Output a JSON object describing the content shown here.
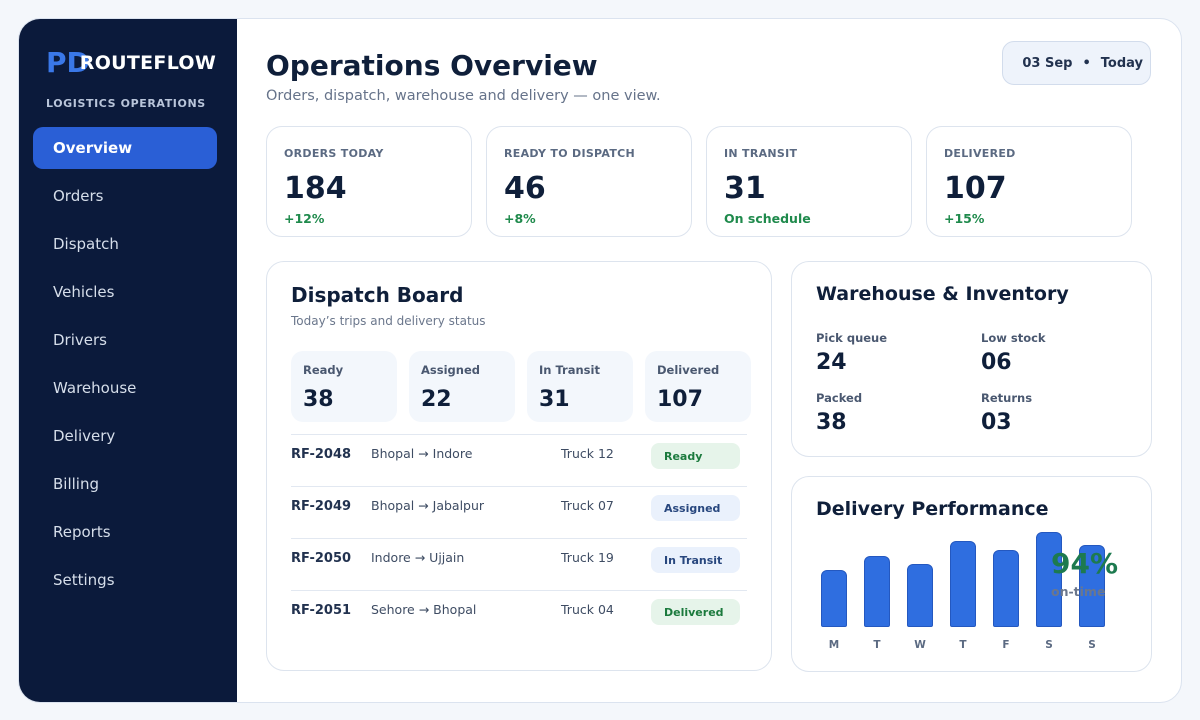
{
  "sidebar": {
    "brand_mark": "PD",
    "brand_name": "ROUTEFLOW",
    "brand_sub": "LOGISTICS OPERATIONS",
    "items": [
      {
        "label": "Overview"
      },
      {
        "label": "Orders"
      },
      {
        "label": "Dispatch"
      },
      {
        "label": "Vehicles"
      },
      {
        "label": "Drivers"
      },
      {
        "label": "Warehouse"
      },
      {
        "label": "Delivery"
      },
      {
        "label": "Billing"
      },
      {
        "label": "Reports"
      },
      {
        "label": "Settings"
      }
    ],
    "active_item": "Overview"
  },
  "header": {
    "title": "Operations Overview",
    "subtitle": "Orders, dispatch, warehouse and delivery — one view.",
    "date": "03 Sep",
    "date_sep": "•",
    "date_rel": "Today"
  },
  "kpis": [
    {
      "label": "ORDERS TODAY",
      "value": "184",
      "delta": "+12%"
    },
    {
      "label": "READY TO DISPATCH",
      "value": "46",
      "delta": "+8%"
    },
    {
      "label": "IN TRANSIT",
      "value": "31",
      "delta": "On schedule"
    },
    {
      "label": "DELIVERED",
      "value": "107",
      "delta": "+15%"
    }
  ],
  "dispatch": {
    "title": "Dispatch Board",
    "subtitle": "Today’s trips and delivery status",
    "stats": [
      {
        "label": "Ready",
        "value": "38"
      },
      {
        "label": "Assigned",
        "value": "22"
      },
      {
        "label": "In Transit",
        "value": "31"
      },
      {
        "label": "Delivered",
        "value": "107"
      }
    ],
    "rows": [
      {
        "id": "RF-2048",
        "route": "Bhopal → Indore",
        "vehicle": "Truck 12",
        "status": "Ready"
      },
      {
        "id": "RF-2049",
        "route": "Bhopal → Jabalpur",
        "vehicle": "Truck 07",
        "status": "Assigned"
      },
      {
        "id": "RF-2050",
        "route": "Indore → Ujjain",
        "vehicle": "Truck 19",
        "status": "In Transit"
      },
      {
        "id": "RF-2051",
        "route": "Sehore → Bhopal",
        "vehicle": "Truck 04",
        "status": "Delivered"
      }
    ]
  },
  "warehouse": {
    "title": "Warehouse & Inventory",
    "metrics": [
      {
        "label": "Pick queue",
        "value": "24"
      },
      {
        "label": "Low stock",
        "value": "06"
      },
      {
        "label": "Packed",
        "value": "38"
      },
      {
        "label": "Returns",
        "value": "03"
      }
    ]
  },
  "performance": {
    "title": "Delivery Performance",
    "percent": "94%",
    "caption": "on-time",
    "bar_color": "#2f6ee0"
  },
  "chart_data": {
    "type": "bar",
    "categories": [
      "M",
      "T",
      "W",
      "T",
      "F",
      "S",
      "S"
    ],
    "values": [
      58,
      72,
      64,
      88,
      79,
      97,
      84
    ],
    "ylim": [
      0,
      100
    ]
  },
  "colors": {
    "sidebar_bg": "#0b1a3b",
    "accent": "#2a5fd6",
    "positive": "#1f8a4c"
  }
}
